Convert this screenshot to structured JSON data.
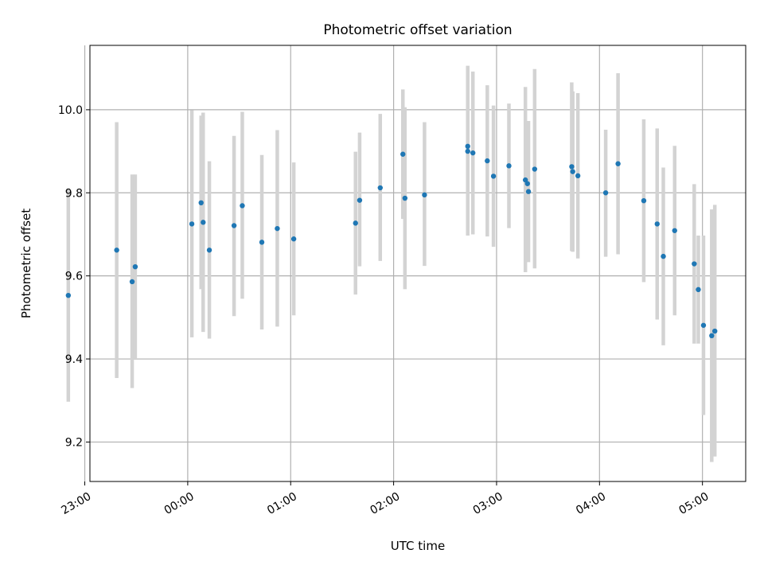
{
  "chart_data": {
    "type": "scatter",
    "title": "Photometric offset variation",
    "xlabel": "UTC time",
    "ylabel": "Photometric offset",
    "x_unit": "hours since 00:00 UTC",
    "xlim": [
      -0.95,
      5.42
    ],
    "ylim": [
      9.105,
      10.155
    ],
    "xticks": [
      -1,
      0,
      1,
      2,
      3,
      4,
      5
    ],
    "xtick_labels": [
      "23:00",
      "00:00",
      "01:00",
      "02:00",
      "03:00",
      "04:00",
      "05:00"
    ],
    "yticks": [
      9.2,
      9.4,
      9.6,
      9.8,
      10.0
    ],
    "ytick_labels": [
      "9.2",
      "9.4",
      "9.6",
      "9.8",
      "10.0"
    ],
    "grid": true,
    "colors": {
      "point": "#1f77b4",
      "errorbar": "#d3d3d3",
      "grid": "#b0b0b0"
    },
    "points": [
      {
        "x": -1.16,
        "y": 9.553,
        "lo": 9.297,
        "hi": 9.811
      },
      {
        "x": -0.69,
        "y": 9.662,
        "lo": 9.354,
        "hi": 9.97
      },
      {
        "x": -0.54,
        "y": 9.586,
        "lo": 9.33,
        "hi": 9.844
      },
      {
        "x": -0.51,
        "y": 9.622,
        "lo": 9.4,
        "hi": 9.844
      },
      {
        "x": 0.04,
        "y": 9.725,
        "lo": 9.452,
        "hi": 9.999
      },
      {
        "x": 0.13,
        "y": 9.776,
        "lo": 9.568,
        "hi": 9.986
      },
      {
        "x": 0.15,
        "y": 9.729,
        "lo": 9.465,
        "hi": 9.993
      },
      {
        "x": 0.21,
        "y": 9.662,
        "lo": 9.449,
        "hi": 9.876
      },
      {
        "x": 0.45,
        "y": 9.721,
        "lo": 9.503,
        "hi": 9.937
      },
      {
        "x": 0.53,
        "y": 9.769,
        "lo": 9.545,
        "hi": 9.995
      },
      {
        "x": 0.72,
        "y": 9.681,
        "lo": 9.471,
        "hi": 9.891
      },
      {
        "x": 0.87,
        "y": 9.714,
        "lo": 9.478,
        "hi": 9.951
      },
      {
        "x": 1.03,
        "y": 9.689,
        "lo": 9.505,
        "hi": 9.873
      },
      {
        "x": 1.63,
        "y": 9.727,
        "lo": 9.555,
        "hi": 9.899
      },
      {
        "x": 1.67,
        "y": 9.782,
        "lo": 9.623,
        "hi": 9.945
      },
      {
        "x": 1.87,
        "y": 9.812,
        "lo": 9.636,
        "hi": 9.99
      },
      {
        "x": 2.09,
        "y": 9.893,
        "lo": 9.737,
        "hi": 10.049
      },
      {
        "x": 2.11,
        "y": 9.787,
        "lo": 9.568,
        "hi": 10.006
      },
      {
        "x": 2.3,
        "y": 9.795,
        "lo": 9.624,
        "hi": 9.97
      },
      {
        "x": 2.72,
        "y": 9.912,
        "lo": 9.717,
        "hi": 10.106
      },
      {
        "x": 2.72,
        "y": 9.9,
        "lo": 9.697,
        "hi": 10.103
      },
      {
        "x": 2.77,
        "y": 9.896,
        "lo": 9.7,
        "hi": 10.092
      },
      {
        "x": 2.91,
        "y": 9.877,
        "lo": 9.695,
        "hi": 10.059
      },
      {
        "x": 2.97,
        "y": 9.84,
        "lo": 9.67,
        "hi": 10.01
      },
      {
        "x": 3.12,
        "y": 9.865,
        "lo": 9.715,
        "hi": 10.015
      },
      {
        "x": 3.28,
        "y": 9.831,
        "lo": 9.609,
        "hi": 10.055
      },
      {
        "x": 3.3,
        "y": 9.822,
        "lo": 9.687,
        "hi": 9.957
      },
      {
        "x": 3.31,
        "y": 9.803,
        "lo": 9.633,
        "hi": 9.973
      },
      {
        "x": 3.37,
        "y": 9.857,
        "lo": 9.618,
        "hi": 10.098
      },
      {
        "x": 3.73,
        "y": 9.863,
        "lo": 9.66,
        "hi": 10.066
      },
      {
        "x": 3.74,
        "y": 9.851,
        "lo": 9.658,
        "hi": 10.044
      },
      {
        "x": 3.79,
        "y": 9.841,
        "lo": 9.642,
        "hi": 10.04
      },
      {
        "x": 4.06,
        "y": 9.8,
        "lo": 9.646,
        "hi": 9.952
      },
      {
        "x": 4.18,
        "y": 9.87,
        "lo": 9.652,
        "hi": 10.088
      },
      {
        "x": 4.43,
        "y": 9.781,
        "lo": 9.585,
        "hi": 9.977
      },
      {
        "x": 4.56,
        "y": 9.725,
        "lo": 9.495,
        "hi": 9.955
      },
      {
        "x": 4.62,
        "y": 9.647,
        "lo": 9.433,
        "hi": 9.861
      },
      {
        "x": 4.73,
        "y": 9.709,
        "lo": 9.505,
        "hi": 9.913
      },
      {
        "x": 4.92,
        "y": 9.629,
        "lo": 9.437,
        "hi": 9.821
      },
      {
        "x": 4.96,
        "y": 9.567,
        "lo": 9.437,
        "hi": 9.697
      },
      {
        "x": 5.01,
        "y": 9.481,
        "lo": 9.265,
        "hi": 9.697
      },
      {
        "x": 5.09,
        "y": 9.456,
        "lo": 9.152,
        "hi": 9.76
      },
      {
        "x": 5.12,
        "y": 9.467,
        "lo": 9.165,
        "hi": 9.771
      }
    ]
  }
}
